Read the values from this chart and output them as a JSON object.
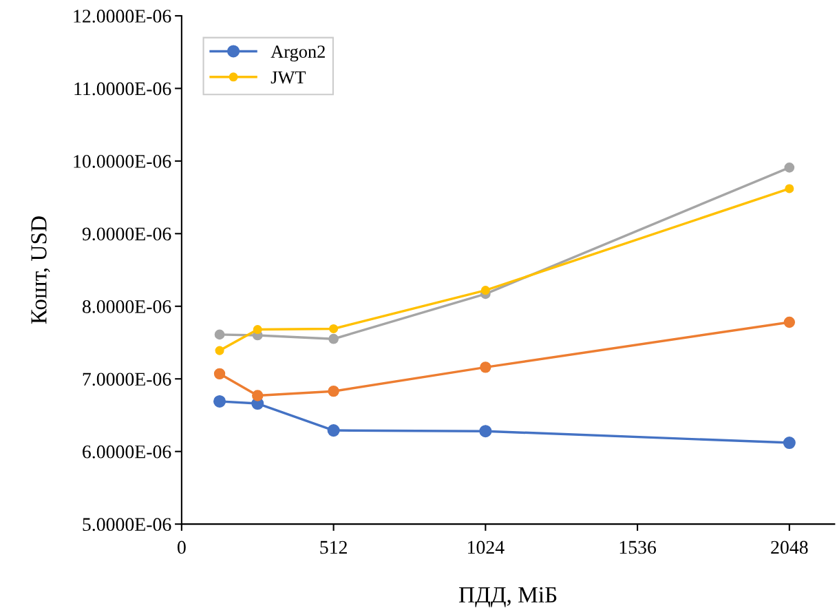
{
  "chart_data": {
    "type": "line",
    "xlabel": "ПДД, МіБ",
    "ylabel": "Кошт, USD",
    "x": [
      128,
      256,
      512,
      1024,
      2048
    ],
    "series": [
      {
        "name": "Argon2",
        "color": "#4472c4",
        "values": [
          6.69e-06,
          6.66e-06,
          6.29e-06,
          6.28e-06,
          6.12e-06
        ]
      },
      {
        "color": "#ed7d31",
        "values": [
          7.07e-06,
          6.77e-06,
          6.83e-06,
          7.16e-06,
          7.78e-06
        ]
      },
      {
        "color": "#a5a5a5",
        "values": [
          7.61e-06,
          7.6e-06,
          7.55e-06,
          8.17e-06,
          9.91e-06
        ]
      },
      {
        "name": "JWT",
        "color": "#ffc000",
        "values": [
          7.39e-06,
          7.68e-06,
          7.69e-06,
          8.22e-06,
          9.62e-06
        ]
      }
    ],
    "xlim": [
      0,
      2200
    ],
    "xticks": [
      0,
      512,
      1024,
      1536,
      2048
    ],
    "ylim": [
      5e-06,
      1.2e-05
    ],
    "yticks": [
      {
        "value": 5e-06,
        "label": "5.0000E-06"
      },
      {
        "value": 6e-06,
        "label": "6.0000E-06"
      },
      {
        "value": 7e-06,
        "label": "7.0000E-06"
      },
      {
        "value": 8e-06,
        "label": "8.0000E-06"
      },
      {
        "value": 9e-06,
        "label": "9.0000E-06"
      },
      {
        "value": 1e-05,
        "label": "10.0000E-06"
      },
      {
        "value": 1.1e-05,
        "label": "11.0000E-06"
      },
      {
        "value": 1.2e-05,
        "label": "12.0000E-06"
      }
    ],
    "marker": "circle",
    "line_style": "solid",
    "legend": "top left",
    "grid": false
  }
}
